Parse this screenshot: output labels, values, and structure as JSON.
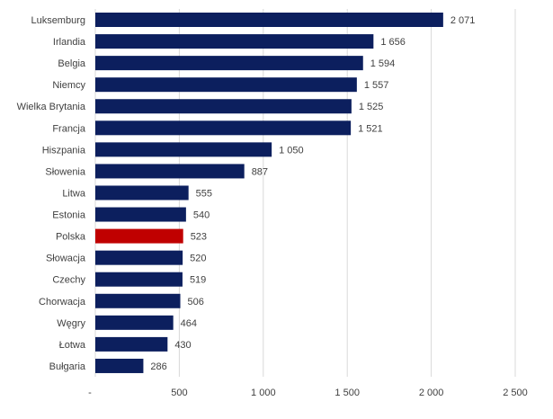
{
  "chart_data": {
    "type": "bar",
    "orientation": "horizontal",
    "categories": [
      "Luksemburg",
      "Irlandia",
      "Belgia",
      "Niemcy",
      "Wielka Brytania",
      "Francja",
      "Hiszpania",
      "Słowenia",
      "Litwa",
      "Estonia",
      "Polska",
      "Słowacja",
      "Czechy",
      "Chorwacja",
      "Węgry",
      "Łotwa",
      "Bułgaria"
    ],
    "values": [
      2071,
      1656,
      1594,
      1557,
      1525,
      1521,
      1050,
      887,
      555,
      540,
      523,
      520,
      519,
      506,
      464,
      430,
      286
    ],
    "value_labels": [
      "2 071",
      "1 656",
      "1 594",
      "1 557",
      "1 525",
      "1 521",
      "1 050",
      "887",
      "555",
      "540",
      "523",
      "520",
      "519",
      "506",
      "464",
      "430",
      "286"
    ],
    "highlight": "Polska",
    "xlim": [
      0,
      2500
    ],
    "ticks": [
      0,
      500,
      1000,
      1500,
      2000,
      2500
    ],
    "tick_labels": [
      "-",
      "500",
      "1 000",
      "1 500",
      "2 000",
      "2 500"
    ],
    "grid": true,
    "legend": "none",
    "title": "",
    "xlabel": "",
    "ylabel": "",
    "colors": {
      "bar": "#0c1f5e",
      "highlight": "#c00000",
      "grid": "#d9d9d9",
      "text": "#404040"
    }
  }
}
